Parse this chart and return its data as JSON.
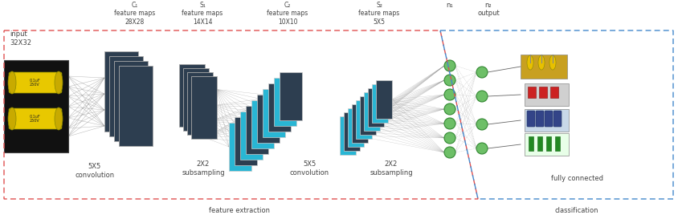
{
  "fig_width": 8.44,
  "fig_height": 2.73,
  "dpi": 100,
  "bg_color": "#ffffff",
  "input_label": "input\n32X32",
  "c1_label": "C₁\nfeature maps\n28X28",
  "s1_label": "S₁\nfeature maps\n14X14",
  "c2_label": "C₂\nfeature maps\n10X10",
  "s2_label": "S₂\nfeature maps\n5X5",
  "n1_label": "n₁",
  "n2_label": "n₂\noutput",
  "conv1_label": "5X5\nconvolution",
  "sub1_label": "2X2\nsubsampling",
  "conv2_label": "5X5\nconvolution",
  "sub2_label": "2X2\nsubsampling",
  "fc_label": "fully connected",
  "feat_label": "feature extraction",
  "class_label": "classification",
  "dark_color": "#2d3e50",
  "cyan_color": "#29b6d4",
  "green_color": "#6dbf67",
  "red_dash_color": "#e05050",
  "blue_dash_color": "#4488cc",
  "line_color": "#888888",
  "gray": "#444444",
  "label_fontsize": 6.0,
  "small_fontsize": 5.0
}
